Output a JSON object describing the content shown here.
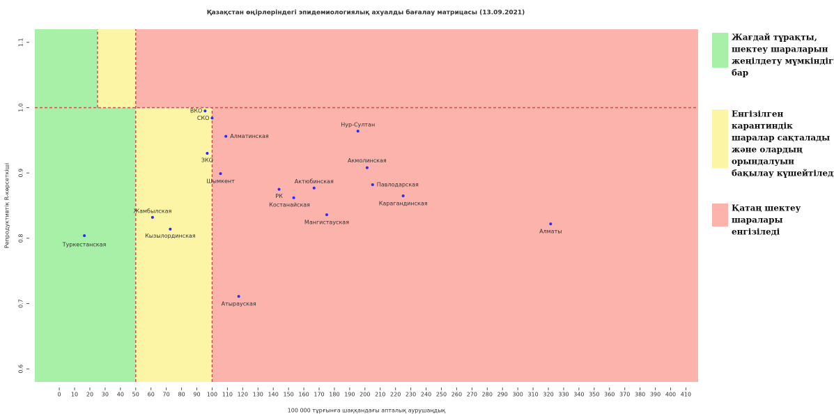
{
  "chart_data": {
    "type": "scatter",
    "title": "Қазақстан өңірлеріндегі эпидемиологиялық ахуалды бағалау матрицасы  (13.09.2021)",
    "x_label": "100 000 тұрғынға шаққандағы апталық аурушаңдық",
    "y_label": "Репродуктивтік R-көрсеткіші",
    "xlim": [
      -16,
      418
    ],
    "ylim": [
      0.58,
      1.12
    ],
    "xticks": [
      0,
      10,
      20,
      30,
      40,
      50,
      60,
      70,
      80,
      90,
      100,
      110,
      120,
      130,
      140,
      150,
      160,
      170,
      180,
      190,
      200,
      210,
      220,
      230,
      240,
      250,
      260,
      270,
      280,
      290,
      300,
      310,
      320,
      330,
      340,
      350,
      360,
      370,
      380,
      390,
      400,
      410
    ],
    "yticks": [
      0.6,
      0.7,
      0.8,
      0.9,
      {
        "value": 1,
        "label": "1.0"
      },
      1.1
    ],
    "series": [
      {
        "color": "#2a2aff",
        "point_labels": [
          "Туркестанская",
          "Жамбылская",
          "Кызылординская",
          "ВКО",
          "СКО",
          "Алматинская",
          "ЗКО",
          "Шымкент",
          "Нур-Султан",
          "Акмолинская",
          "Павлодарская",
          "Карагандинская",
          "Актюбинская",
          "РК",
          "Костанайская",
          "Мангистауская",
          "Алматы",
          "Атырауская"
        ],
        "x": [
          16.4,
          61,
          72.6,
          95.4,
          100,
          109,
          96.8,
          105.5,
          195.4,
          201.4,
          205,
          225,
          166.7,
          143.8,
          153.4,
          175,
          321.5,
          117.4
        ],
        "values": [
          0.804,
          0.832,
          0.814,
          0.995,
          0.984,
          0.956,
          0.93,
          0.899,
          0.964,
          0.908,
          0.882,
          0.865,
          0.877,
          0.875,
          0.862,
          0.836,
          0.822,
          0.711
        ]
      }
    ],
    "regions": [
      {
        "color": "#a8f0a8",
        "x": [
          -16,
          50
        ],
        "y": [
          0.58,
          1
        ]
      },
      {
        "color": "#a8f0a8",
        "x": [
          -16,
          25
        ],
        "y": [
          1,
          1.12
        ]
      },
      {
        "color": "#fdf5a6",
        "x": [
          25,
          50
        ],
        "y": [
          1,
          1.12
        ]
      },
      {
        "color": "#fdf5a6",
        "x": [
          50,
          100
        ],
        "y": [
          0.58,
          1
        ]
      },
      {
        "color": "#fbb3ac",
        "x": [
          50,
          418
        ],
        "y": [
          1,
          1.12
        ]
      },
      {
        "color": "#fbb3ac",
        "x": [
          100,
          418
        ],
        "y": [
          0.58,
          1
        ]
      }
    ],
    "dashed_lines": [
      {
        "color": "#c85050",
        "x": [
          25,
          25
        ],
        "y": [
          1,
          1.12
        ]
      },
      {
        "color": "#c85050",
        "x": [
          50,
          50
        ],
        "y": [
          0.58,
          1.12
        ]
      },
      {
        "color": "#c85050",
        "x": [
          100,
          100
        ],
        "y": [
          0.58,
          1
        ]
      },
      {
        "color": "#c85050",
        "x": [
          -16,
          418
        ],
        "y": [
          1,
          1
        ]
      }
    ],
    "legend": [
      {
        "color": "#a8f0a8",
        "lines": [
          "Жағдай тұрақты,",
          "шектеу шараларын",
          "жеңілдету мүмкіндігі",
          "бар"
        ]
      },
      {
        "color": "#fdf5a6",
        "lines": [
          "Енгізілген",
          "карантиндік",
          "шаралар сақталады",
          "және олардың",
          "орындалуын",
          "бақылау күшейтіледі"
        ]
      },
      {
        "color": "#fbb3ac",
        "lines": [
          "Қатаң шектеу",
          "шаралары",
          "енгізіледі"
        ]
      }
    ]
  }
}
